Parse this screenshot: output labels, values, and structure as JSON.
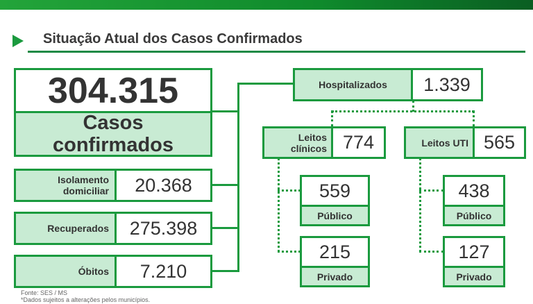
{
  "header": {
    "title": "Situação Atual dos Casos Confirmados",
    "accent": "#1a9a3e",
    "fill": "#c8ebd3"
  },
  "confirmados": {
    "value": "304.315",
    "label": "Casos confirmados"
  },
  "isolamento": {
    "label": "Isolamento domiciliar",
    "value": "20.368"
  },
  "recuperados": {
    "label": "Recuperados",
    "value": "275.398"
  },
  "obitos": {
    "label": "Óbitos",
    "value": "7.210"
  },
  "hospitalizados": {
    "label": "Hospitalizados",
    "value": "1.339"
  },
  "leitos_clinicos": {
    "label": "Leitos clínicos",
    "value": "774",
    "publico": {
      "value": "559",
      "label": "Público"
    },
    "privado": {
      "value": "215",
      "label": "Privado"
    }
  },
  "leitos_uti": {
    "label": "Leitos UTI",
    "value": "565",
    "publico": {
      "value": "438",
      "label": "Público"
    },
    "privado": {
      "value": "127",
      "label": "Privado"
    }
  },
  "footer": {
    "source": "Fonte: SES / MS",
    "note": "*Dados sujeitos a alterações pelos municípios."
  }
}
